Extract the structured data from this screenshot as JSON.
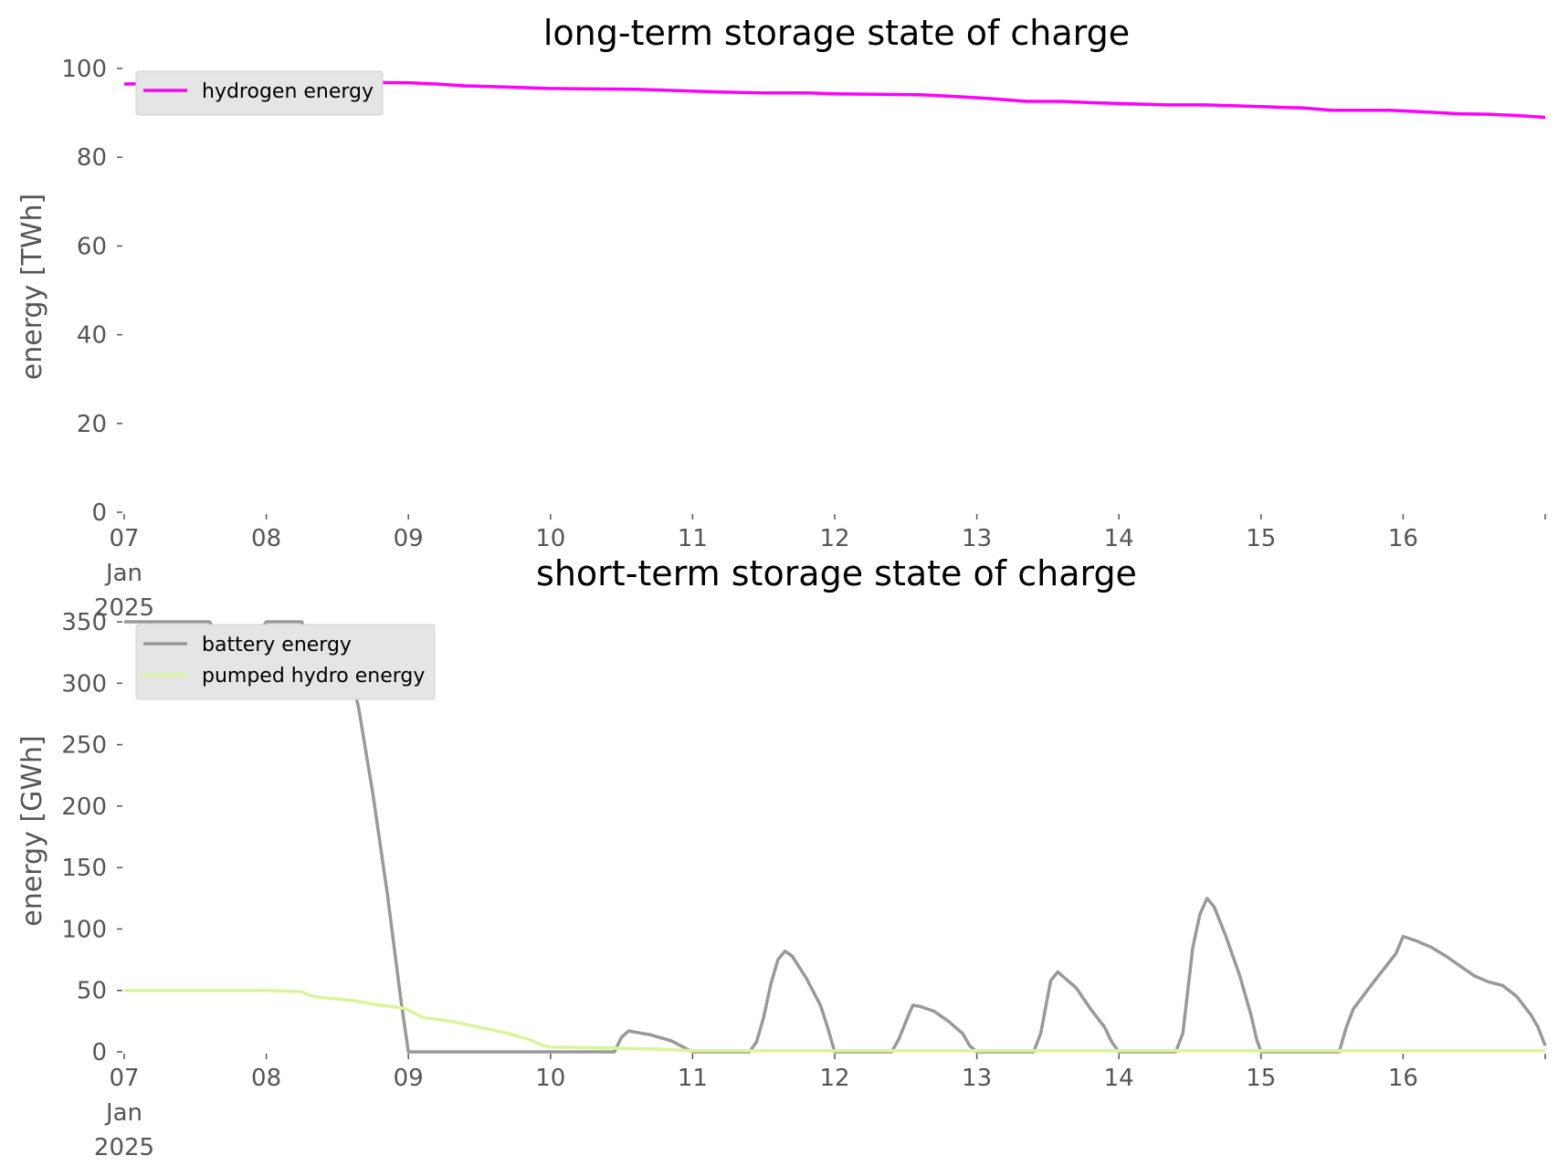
{
  "chart_data": [
    {
      "type": "line",
      "title": "long-term storage state of charge",
      "xlabel": "",
      "ylabel": "energy [TWh]",
      "x_unit": "day of Jan 2025",
      "xlim": [
        7,
        17
      ],
      "ylim": [
        0,
        100
      ],
      "yticks": [
        0,
        20,
        40,
        60,
        80,
        100
      ],
      "xticks": [
        {
          "x": 7,
          "label": [
            "07",
            "Jan",
            "2025"
          ]
        },
        {
          "x": 8,
          "label": [
            "08"
          ]
        },
        {
          "x": 9,
          "label": [
            "09"
          ]
        },
        {
          "x": 10,
          "label": [
            "10"
          ]
        },
        {
          "x": 11,
          "label": [
            "11"
          ]
        },
        {
          "x": 12,
          "label": [
            "12"
          ]
        },
        {
          "x": 13,
          "label": [
            "13"
          ]
        },
        {
          "x": 14,
          "label": [
            "14"
          ]
        },
        {
          "x": 15,
          "label": [
            "15"
          ]
        },
        {
          "x": 16,
          "label": [
            "16"
          ]
        }
      ],
      "grid": false,
      "legend_position": "top-left",
      "series": [
        {
          "name": "hydrogen energy",
          "color": "#ff00ff",
          "points": [
            [
              7.0,
              96.5
            ],
            [
              7.5,
              96.7
            ],
            [
              8.0,
              96.9
            ],
            [
              8.5,
              96.9
            ],
            [
              9.0,
              96.8
            ],
            [
              9.2,
              96.5
            ],
            [
              9.4,
              96.1
            ],
            [
              9.6,
              95.9
            ],
            [
              9.8,
              95.7
            ],
            [
              10.0,
              95.5
            ],
            [
              10.3,
              95.4
            ],
            [
              10.6,
              95.3
            ],
            [
              10.8,
              95.1
            ],
            [
              11.0,
              94.9
            ],
            [
              11.2,
              94.7
            ],
            [
              11.5,
              94.5
            ],
            [
              11.8,
              94.5
            ],
            [
              12.0,
              94.3
            ],
            [
              12.3,
              94.2
            ],
            [
              12.6,
              94.1
            ],
            [
              12.9,
              93.6
            ],
            [
              13.1,
              93.2
            ],
            [
              13.35,
              92.6
            ],
            [
              13.6,
              92.6
            ],
            [
              13.8,
              92.3
            ],
            [
              14.0,
              92.1
            ],
            [
              14.35,
              91.8
            ],
            [
              14.6,
              91.8
            ],
            [
              14.8,
              91.6
            ],
            [
              15.0,
              91.4
            ],
            [
              15.3,
              91.1
            ],
            [
              15.5,
              90.6
            ],
            [
              15.7,
              90.6
            ],
            [
              15.9,
              90.6
            ],
            [
              16.1,
              90.3
            ],
            [
              16.4,
              89.8
            ],
            [
              16.6,
              89.7
            ],
            [
              16.8,
              89.4
            ],
            [
              17.0,
              89.0
            ]
          ]
        }
      ]
    },
    {
      "type": "line",
      "title": "short-term storage state of charge",
      "xlabel": "",
      "ylabel": "energy [GWh]",
      "x_unit": "day of Jan 2025",
      "xlim": [
        7,
        17
      ],
      "ylim": [
        0,
        350
      ],
      "yticks": [
        0,
        50,
        100,
        150,
        200,
        250,
        300,
        350
      ],
      "xticks": [
        {
          "x": 7,
          "label": [
            "07",
            "Jan",
            "2025"
          ]
        },
        {
          "x": 8,
          "label": [
            "08"
          ]
        },
        {
          "x": 9,
          "label": [
            "09"
          ]
        },
        {
          "x": 10,
          "label": [
            "10"
          ]
        },
        {
          "x": 11,
          "label": [
            "11"
          ]
        },
        {
          "x": 12,
          "label": [
            "12"
          ]
        },
        {
          "x": 13,
          "label": [
            "13"
          ]
        },
        {
          "x": 14,
          "label": [
            "14"
          ]
        },
        {
          "x": 15,
          "label": [
            "15"
          ]
        },
        {
          "x": 16,
          "label": [
            "16"
          ]
        }
      ],
      "grid": false,
      "legend_position": "top-left",
      "series": [
        {
          "name": "battery energy",
          "color": "#999999",
          "points": [
            [
              7.0,
              350
            ],
            [
              7.3,
              350
            ],
            [
              7.6,
              350
            ],
            [
              7.7,
              332
            ],
            [
              7.8,
              327
            ],
            [
              7.9,
              332
            ],
            [
              8.0,
              350
            ],
            [
              8.25,
              350
            ],
            [
              8.35,
              300
            ],
            [
              8.4,
              295
            ],
            [
              8.5,
              305
            ],
            [
              8.55,
              311
            ],
            [
              8.6,
              305
            ],
            [
              8.65,
              280
            ],
            [
              8.75,
              210
            ],
            [
              8.85,
              130
            ],
            [
              8.95,
              40
            ],
            [
              9.0,
              0
            ],
            [
              10.45,
              0
            ],
            [
              10.5,
              12
            ],
            [
              10.55,
              17
            ],
            [
              10.7,
              14
            ],
            [
              10.85,
              9
            ],
            [
              10.95,
              3
            ],
            [
              11.0,
              0
            ],
            [
              11.4,
              0
            ],
            [
              11.45,
              8
            ],
            [
              11.5,
              28
            ],
            [
              11.55,
              55
            ],
            [
              11.6,
              75
            ],
            [
              11.65,
              82
            ],
            [
              11.7,
              78
            ],
            [
              11.8,
              60
            ],
            [
              11.9,
              38
            ],
            [
              11.95,
              20
            ],
            [
              12.0,
              0
            ],
            [
              12.4,
              0
            ],
            [
              12.45,
              10
            ],
            [
              12.52,
              30
            ],
            [
              12.55,
              38
            ],
            [
              12.6,
              37
            ],
            [
              12.7,
              33
            ],
            [
              12.8,
              25
            ],
            [
              12.9,
              15
            ],
            [
              12.95,
              5
            ],
            [
              13.0,
              0
            ],
            [
              13.4,
              0
            ],
            [
              13.45,
              15
            ],
            [
              13.52,
              58
            ],
            [
              13.57,
              65
            ],
            [
              13.6,
              62
            ],
            [
              13.7,
              52
            ],
            [
              13.8,
              35
            ],
            [
              13.9,
              20
            ],
            [
              13.95,
              8
            ],
            [
              14.0,
              0
            ],
            [
              14.4,
              0
            ],
            [
              14.45,
              15
            ],
            [
              14.52,
              85
            ],
            [
              14.57,
              112
            ],
            [
              14.62,
              125
            ],
            [
              14.67,
              118
            ],
            [
              14.75,
              95
            ],
            [
              14.85,
              62
            ],
            [
              14.93,
              30
            ],
            [
              14.97,
              10
            ],
            [
              15.0,
              0
            ],
            [
              15.55,
              0
            ],
            [
              15.6,
              20
            ],
            [
              15.65,
              35
            ],
            [
              15.8,
              58
            ],
            [
              15.95,
              80
            ],
            [
              16.0,
              94
            ],
            [
              16.1,
              90
            ],
            [
              16.2,
              85
            ],
            [
              16.3,
              78
            ],
            [
              16.4,
              70
            ],
            [
              16.5,
              62
            ],
            [
              16.6,
              57
            ],
            [
              16.7,
              54
            ],
            [
              16.8,
              45
            ],
            [
              16.9,
              30
            ],
            [
              16.95,
              20
            ],
            [
              17.0,
              5
            ]
          ]
        },
        {
          "name": "pumped hydro energy",
          "color": "#d9f59a",
          "points": [
            [
              7.0,
              50
            ],
            [
              7.5,
              50
            ],
            [
              8.0,
              50
            ],
            [
              8.25,
              49
            ],
            [
              8.3,
              46
            ],
            [
              8.4,
              44
            ],
            [
              8.5,
              43
            ],
            [
              8.6,
              42
            ],
            [
              8.8,
              38
            ],
            [
              8.95,
              36
            ],
            [
              9.0,
              34
            ],
            [
              9.1,
              28
            ],
            [
              9.3,
              25
            ],
            [
              9.5,
              20
            ],
            [
              9.7,
              15
            ],
            [
              9.85,
              10
            ],
            [
              9.95,
              5
            ],
            [
              10.0,
              4
            ],
            [
              10.5,
              3
            ],
            [
              10.8,
              2
            ],
            [
              11.0,
              1
            ],
            [
              12.0,
              1
            ],
            [
              13.0,
              1
            ],
            [
              14.0,
              1
            ],
            [
              15.0,
              1
            ],
            [
              16.0,
              1
            ],
            [
              17.0,
              1
            ]
          ]
        }
      ]
    }
  ]
}
